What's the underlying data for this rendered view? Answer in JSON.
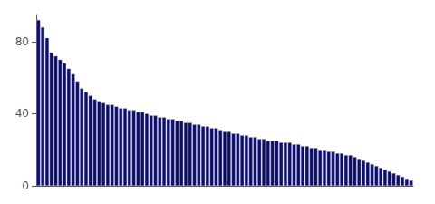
{
  "chart_data": {
    "type": "bar",
    "values": [
      92,
      88,
      82,
      74,
      72,
      70,
      68,
      65,
      62,
      58,
      54,
      52,
      50,
      48,
      47,
      46,
      45,
      45,
      44,
      43,
      43,
      42,
      42,
      41,
      41,
      40,
      39,
      39,
      38,
      38,
      37,
      37,
      36,
      36,
      35,
      35,
      34,
      34,
      33,
      33,
      32,
      32,
      31,
      30,
      30,
      29,
      29,
      28,
      28,
      27,
      27,
      26,
      26,
      25,
      25,
      25,
      24,
      24,
      24,
      23,
      23,
      22,
      22,
      21,
      21,
      20,
      20,
      19,
      19,
      18,
      18,
      17,
      17,
      16,
      15,
      14,
      13,
      12,
      11,
      10,
      9,
      8,
      7,
      6,
      5,
      4,
      3
    ],
    "color": "#0d0d6b",
    "ylim": [
      0,
      95
    ],
    "yticks": [
      0,
      40,
      80
    ],
    "grid": false,
    "tick_labels": "y"
  }
}
